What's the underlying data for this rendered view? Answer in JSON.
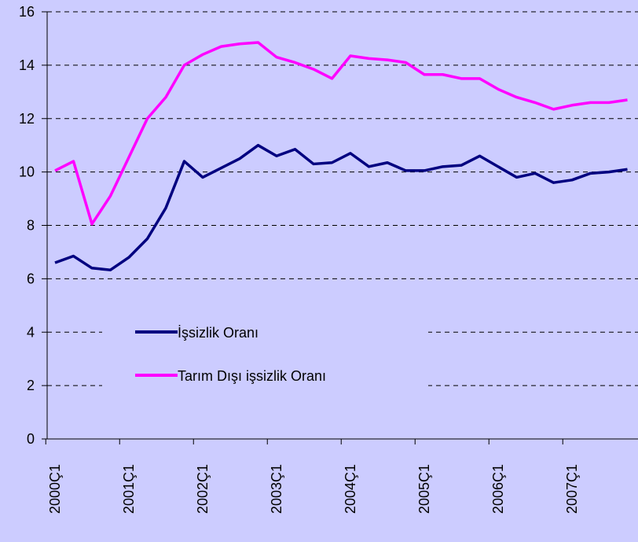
{
  "chart_data": {
    "type": "line",
    "categories": [
      "2000Ç1",
      null,
      null,
      null,
      "2001Ç1",
      null,
      null,
      null,
      "2002Ç1",
      null,
      null,
      null,
      "2003Ç1",
      null,
      null,
      null,
      "2004Ç1",
      null,
      null,
      null,
      "2005Ç1",
      null,
      null,
      null,
      "2006Ç1",
      null,
      null,
      null,
      "2007Ç1",
      null,
      null,
      null
    ],
    "series": [
      {
        "name": "İşsizlik Oranı",
        "color": "#000080",
        "values": [
          6.6,
          6.85,
          6.4,
          6.33,
          6.8,
          7.5,
          8.65,
          10.4,
          9.8,
          10.15,
          10.5,
          11.0,
          10.6,
          10.85,
          10.3,
          10.35,
          10.7,
          10.2,
          10.35,
          10.05,
          10.05,
          10.2,
          10.25,
          10.6,
          10.2,
          9.8,
          9.95,
          9.6,
          9.7,
          9.95,
          10.0,
          10.1
        ]
      },
      {
        "name": "Tarım Dışı işsizlik Oranı",
        "color": "#ff00ff",
        "values": [
          10.05,
          10.4,
          8.05,
          9.1,
          10.55,
          12.0,
          12.8,
          14.0,
          14.4,
          14.7,
          14.8,
          14.85,
          14.3,
          14.1,
          13.85,
          13.5,
          14.35,
          14.25,
          14.2,
          14.1,
          13.65,
          13.65,
          13.5,
          13.5,
          13.1,
          12.8,
          12.6,
          12.35,
          12.5,
          12.6,
          12.6,
          12.7
        ]
      }
    ],
    "ylim": [
      0,
      16
    ],
    "yticks": [
      0,
      2,
      4,
      6,
      8,
      10,
      12,
      14,
      16
    ],
    "grid": true,
    "legend": "center-left"
  }
}
